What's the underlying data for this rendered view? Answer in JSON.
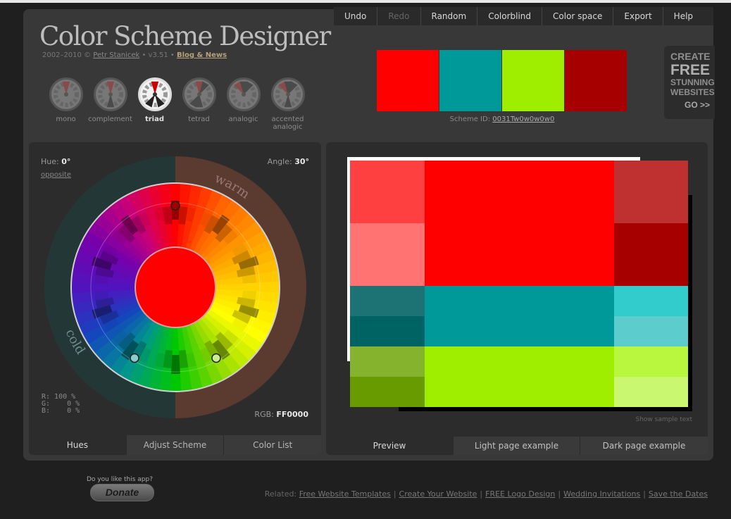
{
  "menu": [
    "Undo",
    "Redo",
    "Random",
    "Colorblind",
    "Color space",
    "Export",
    "Help"
  ],
  "header": {
    "title": "Color Scheme Designer",
    "years": "2002–2010 ©",
    "author": "Petr Stanicek",
    "version": "• v3.51 •",
    "blog": "Blog & News"
  },
  "types": [
    {
      "label": "mono"
    },
    {
      "label": "complement"
    },
    {
      "label": "triad",
      "active": true
    },
    {
      "label": "tetrad"
    },
    {
      "label": "analogic"
    },
    {
      "label": "accented analogic"
    }
  ],
  "swatches": [
    "#FF0000",
    "#009999",
    "#9FEE00",
    "#A60000"
  ],
  "scheme": {
    "label": "Scheme ID:",
    "id": "0031Tw0w0w0w0"
  },
  "ad": {
    "l1": "CREATE",
    "l2": "FREE",
    "l3": "STUNNING",
    "l4": "WEBSITES",
    "go": "GO >>"
  },
  "wheel": {
    "hue_label": "Hue:",
    "hue_value": "0°",
    "opposite": "opposite",
    "angle_label": "Angle:",
    "angle_value": "30°",
    "warm": "warm",
    "cold": "cold",
    "rgb_values": "R: 100 %\nG:    0 %\nB:    0 %",
    "rgb_label": "RGB:",
    "rgb_value": "FF0000",
    "center_color": "#FF0000"
  },
  "left_tabs": [
    "Hues",
    "Adjust Scheme",
    "Color List"
  ],
  "preview": {
    "show_sample": "Show sample text",
    "cells": [
      {
        "color": "#FF4040",
        "col": 1,
        "row": "1"
      },
      {
        "color": "#FF0000",
        "col": 2,
        "row": "1 / span 2"
      },
      {
        "color": "#BF3030",
        "col": 3,
        "row": "1"
      },
      {
        "color": "#FF7373",
        "col": 1,
        "row": "2"
      },
      {
        "color": "#A60000",
        "col": 3,
        "row": "2"
      },
      {
        "color": "#1D7373",
        "col": 1,
        "row": "3"
      },
      {
        "color": "#009999",
        "col": 2,
        "row": "3 / span 2"
      },
      {
        "color": "#33CCCC",
        "col": 3,
        "row": "3"
      },
      {
        "color": "#006363",
        "col": 1,
        "row": "4"
      },
      {
        "color": "#5CCCCC",
        "col": 3,
        "row": "4"
      },
      {
        "color": "#86B32D",
        "col": 1,
        "row": "5"
      },
      {
        "color": "#9FEE00",
        "col": 2,
        "row": "5 / span 2"
      },
      {
        "color": "#B9F73E",
        "col": 3,
        "row": "5"
      },
      {
        "color": "#679B00",
        "col": 1,
        "row": "6"
      },
      {
        "color": "#C9F76F",
        "col": 3,
        "row": "6"
      }
    ]
  },
  "right_tabs": [
    "Preview",
    "Light page example",
    "Dark page example"
  ],
  "footer": {
    "donate_question": "Do you like this app?",
    "donate": "Donate",
    "related_label": "Related:",
    "links": [
      "Free Website Templates",
      "Create Your Website",
      "FREE Logo Design",
      "Wedding Invitations",
      "Save the Dates"
    ]
  }
}
